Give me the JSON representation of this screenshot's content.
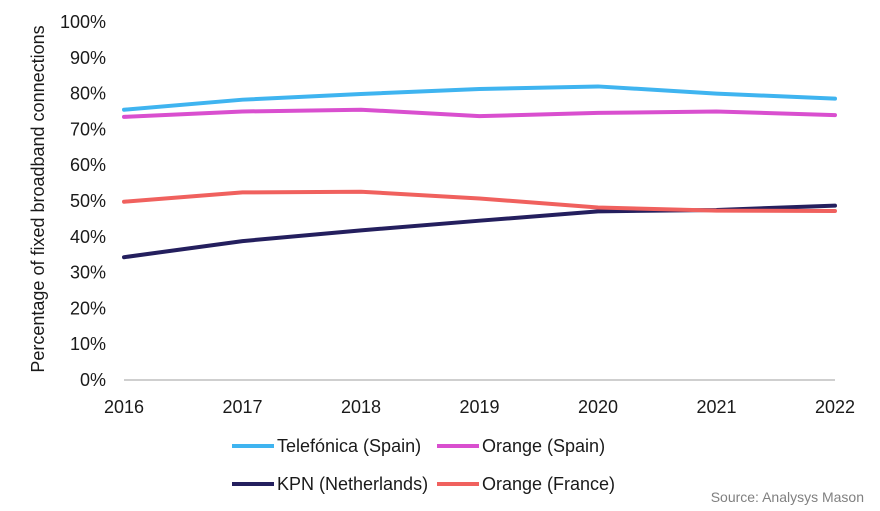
{
  "chart_data": {
    "type": "line",
    "categories": [
      "2016",
      "2017",
      "2018",
      "2019",
      "2020",
      "2021",
      "2022"
    ],
    "ylabel": "Percentage of fixed broadband connections",
    "ylim": [
      0,
      100
    ],
    "yticks": [
      "0%",
      "10%",
      "20%",
      "30%",
      "40%",
      "50%",
      "60%",
      "70%",
      "80%",
      "90%",
      "100%"
    ],
    "grid": false,
    "legend_position": "bottom",
    "series": [
      {
        "name": "Telefónica (Spain)",
        "color": "#3fb4f0",
        "values": [
          75.5,
          78.3,
          79.9,
          81.3,
          82.0,
          80.0,
          78.6
        ]
      },
      {
        "name": "Orange (Spain)",
        "color": "#d94fcf",
        "values": [
          73.5,
          75.0,
          75.5,
          73.7,
          74.6,
          75.0,
          74.0
        ]
      },
      {
        "name": "KPN (Netherlands)",
        "color": "#241f5e",
        "values": [
          34.3,
          38.8,
          41.8,
          44.5,
          47.1,
          47.5,
          48.7
        ]
      },
      {
        "name": "Orange (France)",
        "color": "#f0615e",
        "values": [
          49.8,
          52.4,
          52.6,
          50.7,
          48.2,
          47.3,
          47.2
        ]
      }
    ]
  },
  "source_text": "Source: Analysys Mason"
}
